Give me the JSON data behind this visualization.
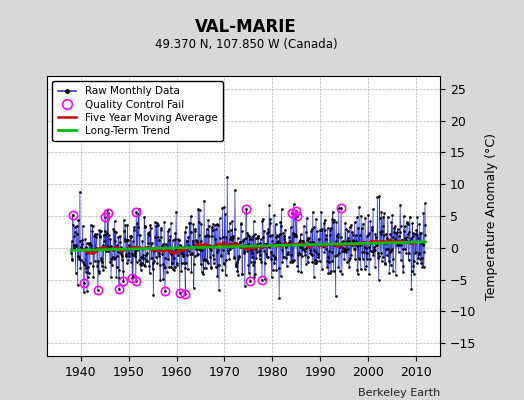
{
  "title": "VAL-MARIE",
  "subtitle": "49.370 N, 107.850 W (Canada)",
  "ylabel": "Temperature Anomaly (°C)",
  "credit": "Berkeley Earth",
  "xlim": [
    1933,
    2015
  ],
  "ylim": [
    -17,
    27
  ],
  "yticks": [
    -15,
    -10,
    -5,
    0,
    5,
    10,
    15,
    20,
    25
  ],
  "xticks": [
    1940,
    1950,
    1960,
    1970,
    1980,
    1990,
    2000,
    2010
  ],
  "bg_color": "#d8d8d8",
  "plot_bg_color": "#ffffff",
  "raw_line_color": "#3333cc",
  "raw_stem_color": "#6699ff",
  "dot_color": "#000000",
  "qc_color": "#ff00ff",
  "moving_avg_color": "#cc0000",
  "trend_color": "#00bb00",
  "seed": 12345,
  "n_months": 888,
  "start_year": 1938.0,
  "noise_std": 2.8
}
